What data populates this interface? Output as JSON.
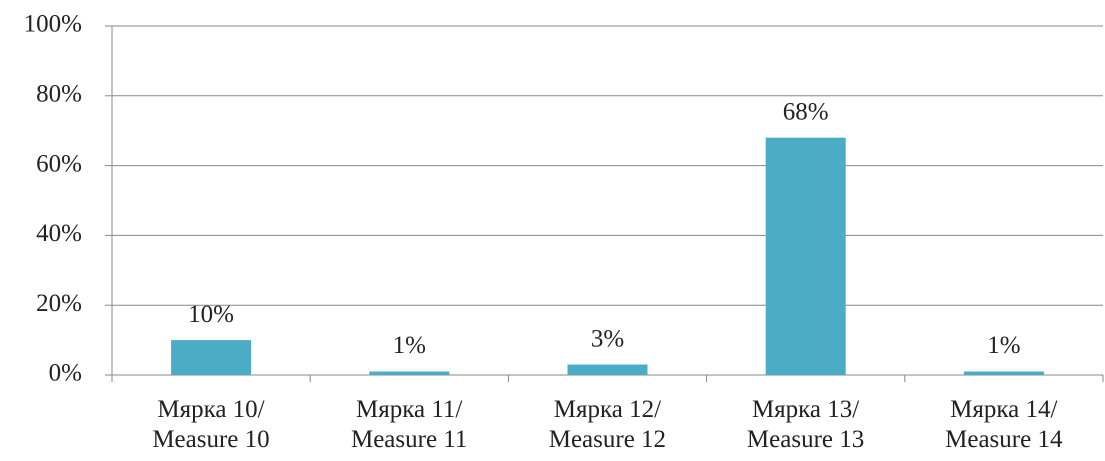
{
  "chart_data": {
    "type": "bar",
    "categories": [
      "Мярка 10/\nMeasure 10",
      "Мярка 11/\nMeasure 11",
      "Мярка 12/\nMeasure 12",
      "Мярка 13/\nMeasure 13",
      "Мярка 14/\nMeasure 14"
    ],
    "values": [
      10,
      1,
      3,
      68,
      1
    ],
    "value_labels": [
      "10%",
      "1%",
      "3%",
      "68%",
      "1%"
    ],
    "color": "#4bacc6",
    "ylim": [
      0,
      100
    ],
    "yticks": [
      {
        "value": 0,
        "label": "0%"
      },
      {
        "value": 20,
        "label": "20%"
      },
      {
        "value": 40,
        "label": "40%"
      },
      {
        "value": 60,
        "label": "60%"
      },
      {
        "value": 80,
        "label": "80%"
      },
      {
        "value": 100,
        "label": "100%"
      }
    ],
    "grid": true
  }
}
